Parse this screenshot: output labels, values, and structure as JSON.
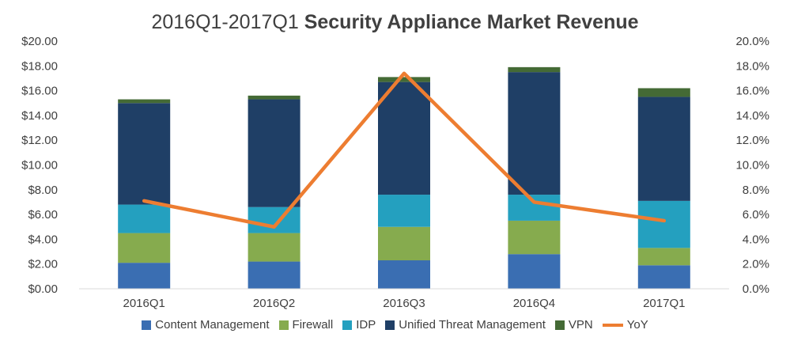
{
  "chart_data": {
    "type": "bar",
    "stacked": true,
    "title_prefix": "2016Q1-2017Q1",
    "title_main": "Security Appliance Market Revenue",
    "categories": [
      "2016Q1",
      "2016Q2",
      "2016Q3",
      "2016Q4",
      "2017Q1"
    ],
    "series": [
      {
        "name": "Content Management",
        "color": "#3a6eb2",
        "values": [
          2.1,
          2.2,
          2.3,
          2.8,
          1.9
        ]
      },
      {
        "name": "Firewall",
        "color": "#86ab4e",
        "values": [
          2.4,
          2.3,
          2.7,
          2.7,
          1.4
        ]
      },
      {
        "name": "IDP",
        "color": "#24a0bf",
        "values": [
          2.3,
          2.1,
          2.6,
          2.1,
          3.8
        ]
      },
      {
        "name": "Unified Threat Management",
        "color": "#1f3f66",
        "values": [
          8.2,
          8.7,
          9.1,
          9.9,
          8.4
        ]
      },
      {
        "name": "VPN",
        "color": "#446a35",
        "values": [
          0.3,
          0.3,
          0.4,
          0.4,
          0.7
        ]
      }
    ],
    "line_series": {
      "name": "YoY",
      "color": "#ed7d31",
      "axis": "right",
      "values": [
        7.1,
        5.0,
        17.4,
        7.0,
        5.5
      ]
    },
    "y_left": {
      "min": 0,
      "max": 20,
      "step": 2,
      "tick_labels": [
        "$0.00",
        "$2.00",
        "$4.00",
        "$6.00",
        "$8.00",
        "$10.00",
        "$12.00",
        "$14.00",
        "$16.00",
        "$18.00",
        "$20.00"
      ]
    },
    "y_right": {
      "min": 0,
      "max": 20,
      "step": 2,
      "tick_labels": [
        "0.0%",
        "2.0%",
        "4.0%",
        "6.0%",
        "8.0%",
        "10.0%",
        "12.0%",
        "14.0%",
        "16.0%",
        "18.0%",
        "20.0%"
      ]
    },
    "grid": false,
    "legend_position": "bottom"
  }
}
